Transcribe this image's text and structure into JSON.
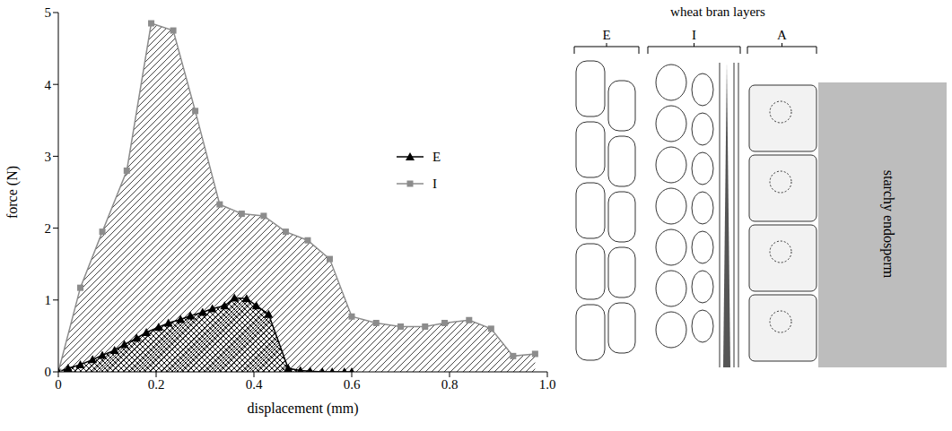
{
  "chart_data": {
    "type": "area",
    "x_label": "displacement (mm)",
    "y_label": "force (N)",
    "xlim": [
      0,
      1
    ],
    "xticks": [
      0,
      0.2,
      0.4,
      0.6,
      0.8,
      {
        "value": 1,
        "label": "1.0"
      }
    ],
    "ylim": [
      0,
      5
    ],
    "yticks": [
      0,
      1,
      2,
      3,
      4,
      5
    ],
    "legend": "upper right",
    "series": [
      {
        "name": "E",
        "color": "#000000",
        "marker": "triangle",
        "x": [
          0,
          0.02,
          0.045,
          0.07,
          0.09,
          0.115,
          0.135,
          0.16,
          0.18,
          0.205,
          0.225,
          0.25,
          0.27,
          0.295,
          0.315,
          0.34,
          0.36,
          0.385,
          0.405,
          0.43,
          0.47,
          0.495,
          0.515,
          0.54,
          0.56,
          0.585,
          0.6
        ],
        "values": [
          0,
          0.05,
          0.1,
          0.17,
          0.23,
          0.3,
          0.38,
          0.47,
          0.55,
          0.62,
          0.68,
          0.73,
          0.78,
          0.83,
          0.88,
          0.92,
          1.03,
          1.02,
          0.92,
          0.8,
          0.05,
          0.02,
          0.01,
          0,
          0,
          0,
          0
        ]
      },
      {
        "name": "I",
        "color": "#8c8c8c",
        "marker": "square",
        "x": [
          0,
          0.045,
          0.09,
          0.14,
          0.19,
          0.235,
          0.28,
          0.33,
          0.375,
          0.42,
          0.465,
          0.51,
          0.555,
          0.6,
          0.65,
          0.7,
          0.75,
          0.79,
          0.84,
          0.885,
          0.93,
          0.975
        ],
        "values": [
          0,
          1.17,
          1.95,
          2.8,
          4.85,
          4.75,
          3.63,
          2.33,
          2.2,
          2.17,
          1.95,
          1.83,
          1.57,
          0.77,
          0.68,
          0.63,
          0.63,
          0.68,
          0.72,
          0.6,
          0.22,
          0.25
        ]
      }
    ]
  },
  "diagram": {
    "title": "wheat bran layers",
    "layers": [
      "E",
      "I",
      "A"
    ],
    "region": "starchy endosperm"
  }
}
